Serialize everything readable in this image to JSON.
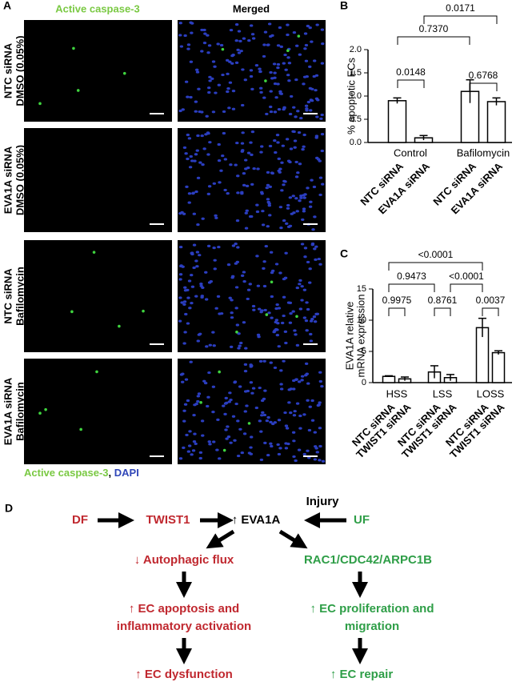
{
  "panel_a": {
    "label": "A",
    "column_titles": [
      "Active caspase-3",
      "Merged"
    ],
    "rows": [
      [
        "NTC siRNA",
        "DMSO (0.05%)"
      ],
      [
        "EVA1A siRNA",
        "DMSO (0.05%)"
      ],
      [
        "NTC siRNA",
        "Bafilomycin"
      ],
      [
        "EVA1A siRNA",
        "Bafilomycin"
      ]
    ],
    "caption": [
      "Active caspase-3",
      ", ",
      "DAPI"
    ]
  },
  "chart_data": [
    {
      "type": "bar",
      "panel": "B",
      "ylabel": "% apoptotic ECs",
      "categories": [
        "Control",
        "Bafilomycin"
      ],
      "series": [
        {
          "name": "NTC siRNA",
          "color": "#ffffff",
          "values": [
            0.9,
            1.1
          ],
          "errors": [
            0.06,
            0.25
          ]
        },
        {
          "name": "EVA1A siRNA",
          "color": "#ffffff",
          "values": [
            0.1,
            0.88
          ],
          "errors": [
            0.05,
            0.08
          ]
        }
      ],
      "ylim": [
        0,
        2
      ],
      "yticks": [
        {
          "value": 0,
          "label": "0.0"
        },
        {
          "value": 0.5,
          "label": "0.5"
        },
        {
          "value": 1,
          "label": "1.0"
        },
        {
          "value": 1.5,
          "label": "1.5"
        },
        {
          "value": 2,
          "label": "2.0"
        }
      ],
      "annotations": [
        "0.0148",
        "0.6768",
        "0.7370",
        "0.0171"
      ]
    },
    {
      "type": "bar",
      "panel": "C",
      "ylabel": [
        "EVA1A relative",
        "mRNA expression"
      ],
      "categories": [
        "HSS",
        "LSS",
        "LOSS"
      ],
      "series": [
        {
          "name": "NTC siRNA",
          "color": "#ffffff",
          "values": [
            1.0,
            1.7,
            8.8
          ],
          "errors": [
            0.1,
            1.0,
            1.5
          ]
        },
        {
          "name": "TWIST1 siRNA",
          "color": "#ffffff",
          "values": [
            0.6,
            0.8,
            4.8
          ],
          "errors": [
            0.3,
            0.5,
            0.3
          ]
        }
      ],
      "ylim": [
        0,
        15
      ],
      "yticks": [
        0,
        5,
        10,
        15
      ],
      "annotations": [
        "0.9975",
        "0.8761",
        "0.0037",
        "0.9473",
        "<0.0001",
        "<0.0001"
      ]
    }
  ],
  "panel_d": {
    "label": "D",
    "nodes": [
      "DF",
      "TWIST1",
      "↑ EVA1A",
      "Injury",
      "UF",
      "↓ Autophagic flux",
      "RAC1/CDC42/ARPC1B",
      "↑ EC apoptosis and",
      "inflammatory activation",
      "↑ EC proliferation and",
      "migration",
      "↑ EC dysfunction",
      "↑ EC repair"
    ]
  }
}
